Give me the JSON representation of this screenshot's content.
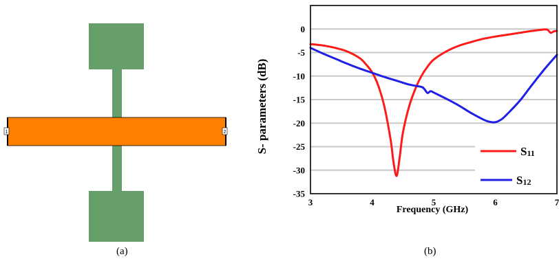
{
  "figure": {
    "caption_a": "(a)",
    "caption_b": "(b)",
    "port_1_label": "1",
    "port_2_label": "2",
    "colors": {
      "stub_green": "#679f6a",
      "line_orange": "#ff8000",
      "s11_red": "#ff1a1a",
      "s12_blue": "#1f1fe6",
      "grid_gray": "#c8c8c8"
    }
  },
  "chart_data": {
    "type": "line",
    "xlabel": "Frequency (GHz)",
    "ylabel": "S- parameters (dB)",
    "xlim": [
      3,
      7
    ],
    "ylim": [
      -35,
      5
    ],
    "xticks": [
      3,
      4,
      5,
      6,
      7
    ],
    "yticks": [
      0,
      -5,
      -10,
      -15,
      -20,
      -25,
      -30,
      -35
    ],
    "grid": "horizontal",
    "legend_position": "bottom-right",
    "series": [
      {
        "name": "S11",
        "name_main": "S",
        "name_sub": "11",
        "color": "#ff1a1a",
        "x": [
          3.0,
          3.2,
          3.4,
          3.6,
          3.8,
          3.9,
          4.0,
          4.1,
          4.2,
          4.3,
          4.35,
          4.4,
          4.45,
          4.5,
          4.6,
          4.7,
          4.8,
          4.9,
          5.0,
          5.2,
          5.4,
          5.6,
          5.8,
          6.0,
          6.2,
          6.4,
          6.6,
          6.8,
          6.85,
          6.9,
          6.95,
          7.0
        ],
        "y": [
          -3.2,
          -3.5,
          -4.0,
          -4.8,
          -6.2,
          -7.5,
          -9.2,
          -12.0,
          -16.5,
          -23.5,
          -28.5,
          -31.2,
          -27.0,
          -22.0,
          -16.5,
          -12.8,
          -10.0,
          -8.0,
          -6.5,
          -4.8,
          -3.6,
          -2.8,
          -2.1,
          -1.6,
          -1.2,
          -0.8,
          -0.4,
          -0.1,
          -0.2,
          -0.8,
          -0.5,
          -0.4
        ]
      },
      {
        "name": "S12",
        "name_main": "S",
        "name_sub": "12",
        "color": "#1f1fe6",
        "x": [
          3.0,
          3.2,
          3.4,
          3.6,
          3.8,
          4.0,
          4.2,
          4.4,
          4.6,
          4.8,
          4.85,
          4.9,
          4.95,
          5.0,
          5.2,
          5.4,
          5.6,
          5.8,
          5.9,
          6.0,
          6.1,
          6.2,
          6.4,
          6.6,
          6.8,
          7.0
        ],
        "y": [
          -4.0,
          -5.2,
          -6.3,
          -7.4,
          -8.4,
          -9.3,
          -10.2,
          -11.0,
          -11.8,
          -12.3,
          -12.8,
          -13.6,
          -13.2,
          -13.5,
          -14.8,
          -16.2,
          -17.8,
          -19.2,
          -19.7,
          -19.8,
          -19.2,
          -18.0,
          -15.2,
          -11.8,
          -8.5,
          -5.5
        ]
      }
    ]
  }
}
